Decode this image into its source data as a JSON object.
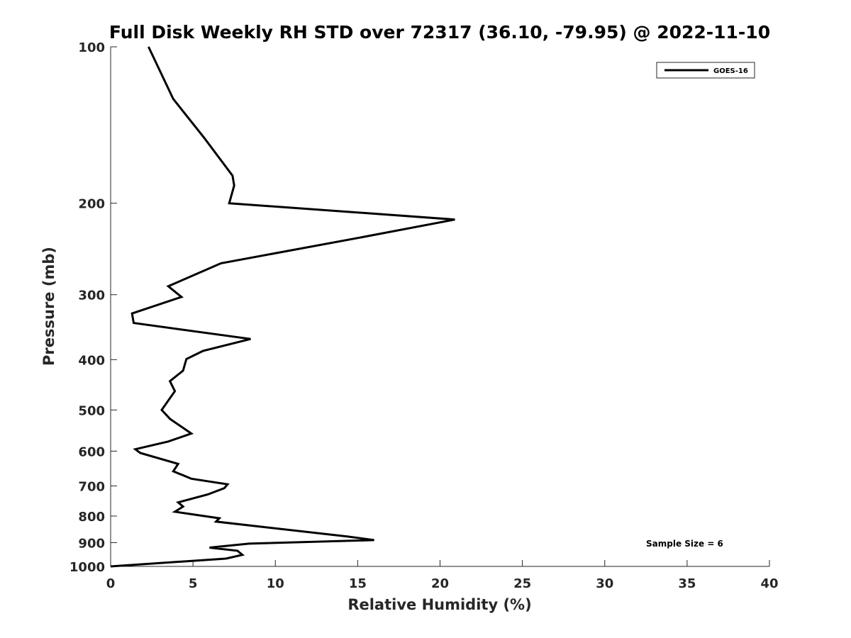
{
  "chart_data": {
    "type": "line",
    "title": "Full Disk Weekly RH STD over 72317 (36.10, -79.95) @ 2022-11-10",
    "xlabel": "Relative Humidity (%)",
    "ylabel": "Pressure (mb)",
    "xlim": [
      0,
      40
    ],
    "ylim": [
      100,
      1000
    ],
    "y_scale": "log",
    "y_reversed": true,
    "x_ticks": [
      0,
      5,
      10,
      15,
      20,
      25,
      30,
      35,
      40
    ],
    "y_ticks": [
      100,
      200,
      300,
      400,
      500,
      600,
      700,
      800,
      900,
      1000
    ],
    "grid": false,
    "legend_position": "top-right",
    "annotation": "Sample Size = 6",
    "series": [
      {
        "name": "GOES-16",
        "color": "#000000",
        "points": [
          [
            2.3,
            100
          ],
          [
            3.8,
            126
          ],
          [
            5.7,
            150
          ],
          [
            7.4,
            177
          ],
          [
            7.5,
            185
          ],
          [
            7.2,
            200
          ],
          [
            20.9,
            215
          ],
          [
            15.1,
            233
          ],
          [
            6.7,
            261
          ],
          [
            3.5,
            289
          ],
          [
            4.3,
            303
          ],
          [
            1.3,
            326
          ],
          [
            1.4,
            340
          ],
          [
            8.5,
            365
          ],
          [
            5.6,
            385
          ],
          [
            4.6,
            399
          ],
          [
            4.4,
            420
          ],
          [
            3.6,
            440
          ],
          [
            3.9,
            460
          ],
          [
            3.1,
            500
          ],
          [
            3.6,
            520
          ],
          [
            4.9,
            555
          ],
          [
            3.5,
            575
          ],
          [
            1.5,
            595
          ],
          [
            1.8,
            605
          ],
          [
            4.1,
            635
          ],
          [
            3.8,
            656
          ],
          [
            4.9,
            678
          ],
          [
            7.1,
            695
          ],
          [
            6.9,
            707
          ],
          [
            5.9,
            727
          ],
          [
            4.1,
            753
          ],
          [
            4.4,
            767
          ],
          [
            3.9,
            785
          ],
          [
            6.6,
            808
          ],
          [
            6.4,
            820
          ],
          [
            14.4,
            876
          ],
          [
            16.0,
            890
          ],
          [
            8.4,
            904
          ],
          [
            6.0,
            920
          ],
          [
            7.7,
            933
          ],
          [
            8.0,
            950
          ],
          [
            7.0,
            966
          ],
          [
            0,
            1000
          ]
        ]
      }
    ]
  }
}
